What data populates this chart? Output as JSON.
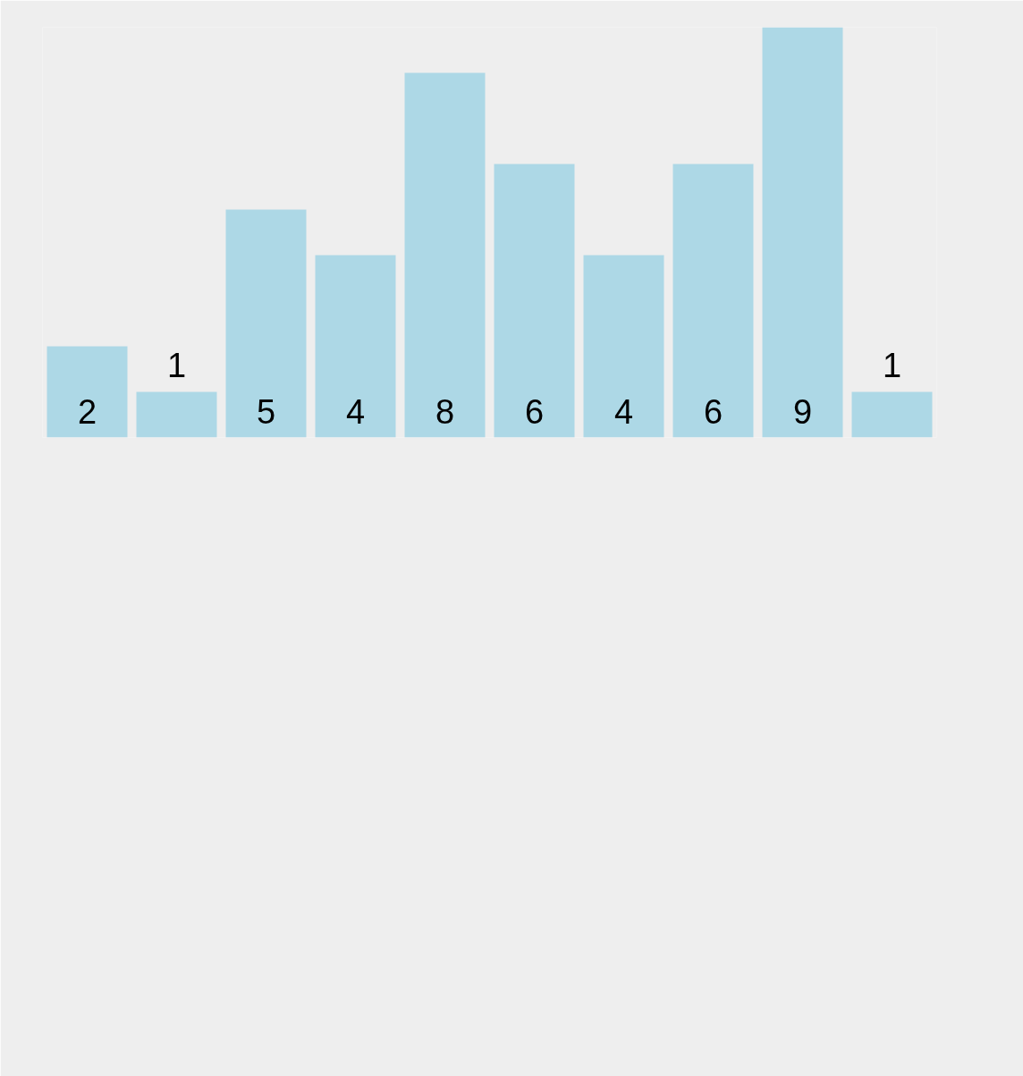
{
  "chart_data": {
    "type": "bar",
    "categories": [
      null,
      null,
      null,
      null,
      null,
      null,
      null,
      null,
      null,
      null
    ],
    "values": [
      2,
      1,
      5,
      4,
      8,
      6,
      4,
      6,
      9,
      1
    ],
    "color": "#add8e6",
    "data_labels": true
  }
}
